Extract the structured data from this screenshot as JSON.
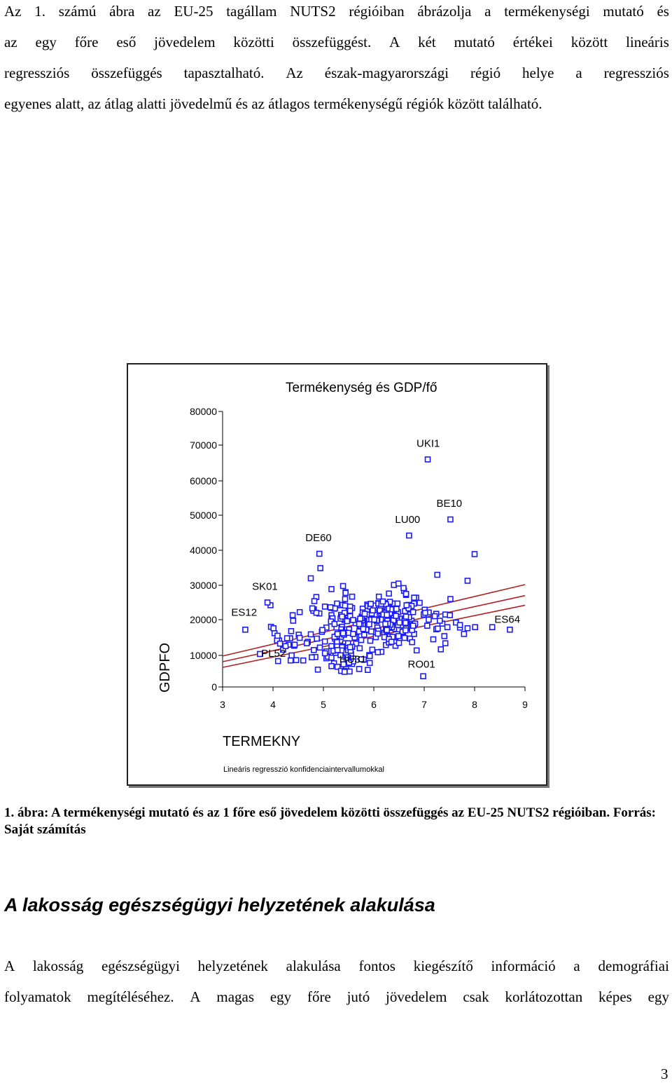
{
  "intro_lines": [
    "Az 1. számú ábra az EU-25 tagállam NUTS2 régióiban ábrázolja a termékenységi mutató és",
    "az egy főre eső jövedelem közötti összefüggést. A két mutató értékei között lineáris",
    "regressziós összefüggés tapasztalható. Az észak-magyarországi régió helye a regressziós",
    "egyenes alatt, az átlag alatti jövedelmű és az átlagos termékenységű régiók között található."
  ],
  "chart_data": {
    "type": "scatter",
    "title": "Termékenység és GDP/fő",
    "xlabel": "TERMEKNY",
    "ylabel": "GDPFO",
    "note": "Lineáris regresszió konfidenciaintervallumokkal",
    "xlim": [
      3,
      9
    ],
    "ylim": [
      0,
      80000
    ],
    "x_ticks": [
      3,
      4,
      5,
      6,
      7,
      8,
      9
    ],
    "y_ticks": [
      0,
      10000,
      20000,
      30000,
      40000,
      50000,
      60000,
      70000,
      80000
    ],
    "point_color": "#1a1aff",
    "line_color": "#b22222",
    "regression": {
      "fit": [
        [
          3.0,
          8000
        ],
        [
          9.0,
          27000
        ]
      ],
      "upper": [
        [
          3.0,
          9800
        ],
        [
          9.0,
          30200
        ]
      ],
      "lower": [
        [
          3.0,
          6200
        ],
        [
          9.0,
          24200
        ]
      ]
    },
    "labeled_points": [
      {
        "label": "UKI1",
        "x": 7.07,
        "y": 66000
      },
      {
        "label": "BE10",
        "x": 7.52,
        "y": 48800
      },
      {
        "label": "LU00",
        "x": 6.7,
        "y": 44200
      },
      {
        "label": "DE60",
        "x": 4.92,
        "y": 39000
      },
      {
        "label": "SK01",
        "x": 3.89,
        "y": 25000
      },
      {
        "label": "ES12",
        "x": 3.45,
        "y": 17200
      },
      {
        "label": "ES64",
        "x": 8.7,
        "y": 17200
      },
      {
        "label": "PL52",
        "x": 4.1,
        "y": 8200
      },
      {
        "label": "HU31",
        "x": 5.4,
        "y": 7200
      },
      {
        "label": "RO01",
        "x": 6.98,
        "y": 3400
      }
    ],
    "points": [
      [
        5.55,
        10400
      ],
      [
        6.27,
        22800
      ],
      [
        3.74,
        10400
      ],
      [
        5.37,
        18000
      ],
      [
        6.85,
        11400
      ],
      [
        6.44,
        22700
      ],
      [
        5.49,
        11400
      ],
      [
        4.51,
        15800
      ],
      [
        6.84,
        26400
      ],
      [
        4.37,
        10000
      ],
      [
        4.53,
        14900
      ],
      [
        4.36,
        16800
      ],
      [
        4.35,
        8400
      ],
      [
        5.16,
        21300
      ],
      [
        5.65,
        13300
      ],
      [
        6.04,
        15100
      ],
      [
        5.34,
        24200
      ],
      [
        5.21,
        7500
      ],
      [
        5.59,
        9000
      ],
      [
        5.93,
        14100
      ],
      [
        6.24,
        12900
      ],
      [
        4.69,
        13800
      ],
      [
        5.72,
        17600
      ],
      [
        5.48,
        20800
      ],
      [
        4.2,
        11600
      ],
      [
        4.42,
        12700
      ],
      [
        6.46,
        18200
      ],
      [
        6.17,
        20300
      ],
      [
        5.16,
        28900
      ],
      [
        5.03,
        23800
      ],
      [
        6.4,
        24700
      ],
      [
        5.57,
        23400
      ],
      [
        6.14,
        20000
      ],
      [
        6.91,
        24900
      ],
      [
        6.58,
        16300
      ],
      [
        3.96,
        18000
      ],
      [
        5.35,
        10600
      ],
      [
        5.35,
        17300
      ],
      [
        5.88,
        5400
      ],
      [
        6.29,
        19700
      ],
      [
        5.76,
        20900
      ],
      [
        4.75,
        15900
      ],
      [
        5.18,
        20300
      ],
      [
        6.43,
        15100
      ],
      [
        7.06,
        18300
      ],
      [
        6.56,
        20300
      ],
      [
        5.79,
        18800
      ],
      [
        5.45,
        5700
      ],
      [
        6.64,
        19200
      ],
      [
        4.4,
        19700
      ],
      [
        6.27,
        23300
      ],
      [
        6.21,
        16300
      ],
      [
        5.65,
        15200
      ],
      [
        6.72,
        14700
      ],
      [
        4.46,
        8500
      ],
      [
        6.26,
        19200
      ],
      [
        6.61,
        20000
      ],
      [
        6.63,
        20300
      ],
      [
        5.49,
        9300
      ],
      [
        5.94,
        21200
      ],
      [
        5.18,
        20400
      ],
      [
        6.07,
        20400
      ],
      [
        5.26,
        13100
      ],
      [
        6.4,
        20200
      ],
      [
        4.81,
        23000
      ],
      [
        5.72,
        12000
      ],
      [
        5.51,
        17300
      ],
      [
        6.06,
        19600
      ],
      [
        6.28,
        24800
      ],
      [
        5.24,
        10700
      ],
      [
        5.78,
        23200
      ],
      [
        5.43,
        13400
      ],
      [
        4.6,
        8400
      ],
      [
        5.33,
        15300
      ],
      [
        4.84,
        9500
      ],
      [
        6.36,
        17700
      ],
      [
        5.16,
        12600
      ],
      [
        6.32,
        25200
      ],
      [
        6.38,
        20300
      ],
      [
        6.62,
        22500
      ],
      [
        4.12,
        14200
      ],
      [
        5.06,
        9100
      ],
      [
        6.32,
        15300
      ],
      [
        6.4,
        20000
      ],
      [
        6.43,
        17400
      ],
      [
        5.28,
        6400
      ],
      [
        6.34,
        18300
      ],
      [
        5.22,
        23200
      ],
      [
        5.15,
        19500
      ],
      [
        6.21,
        15100
      ],
      [
        5.49,
        8700
      ],
      [
        6.76,
        13700
      ],
      [
        4.08,
        14200
      ],
      [
        5.53,
        7600
      ],
      [
        6.36,
        17900
      ],
      [
        5.16,
        6600
      ],
      [
        4.39,
        21300
      ],
      [
        6.56,
        17000
      ],
      [
        5.86,
        17100
      ],
      [
        5.81,
        15800
      ],
      [
        6.8,
        24700
      ],
      [
        6.61,
        19700
      ],
      [
        6.26,
        16800
      ],
      [
        6.75,
        19700
      ],
      [
        6.5,
        17300
      ],
      [
        5.87,
        24400
      ],
      [
        5.95,
        16700
      ],
      [
        5.43,
        21900
      ],
      [
        5.38,
        24300
      ],
      [
        6.24,
        17200
      ],
      [
        4.43,
        13000
      ],
      [
        4.31,
        13000
      ],
      [
        6.8,
        16000
      ],
      [
        4.81,
        11500
      ],
      [
        5.06,
        11100
      ],
      [
        7.36,
        18900
      ],
      [
        6.19,
        24500
      ],
      [
        5.95,
        20000
      ],
      [
        5.96,
        23600
      ],
      [
        6.76,
        18800
      ],
      [
        6.6,
        28400
      ],
      [
        6.02,
        20000
      ],
      [
        6.54,
        18400
      ],
      [
        5.75,
        14300
      ],
      [
        6.48,
        22200
      ],
      [
        4.34,
        14800
      ],
      [
        6.64,
        27200
      ],
      [
        7.01,
        22900
      ],
      [
        5.43,
        16400
      ],
      [
        6.47,
        24700
      ],
      [
        7.4,
        15400
      ],
      [
        6.01,
        22100
      ],
      [
        5.69,
        19500
      ],
      [
        5.34,
        10100
      ],
      [
        5.43,
        5000
      ],
      [
        5.52,
        4900
      ],
      [
        6.15,
        11000
      ],
      [
        5.88,
        24000
      ],
      [
        7.09,
        22100
      ],
      [
        5.23,
        14700
      ],
      [
        5.81,
        19700
      ],
      [
        4.8,
        22600
      ],
      [
        6.99,
        21500
      ],
      [
        6.3,
        18000
      ],
      [
        5.42,
        19900
      ],
      [
        6.4,
        21300
      ],
      [
        5.41,
        5100
      ],
      [
        5.35,
        5100
      ],
      [
        5.49,
        13400
      ],
      [
        5.09,
        9600
      ],
      [
        5.92,
        7600
      ],
      [
        5.64,
        19000
      ],
      [
        5.91,
        21500
      ],
      [
        6.05,
        21100
      ],
      [
        5.57,
        12400
      ],
      [
        5.39,
        29800
      ],
      [
        5.57,
        26700
      ],
      [
        6.02,
        21400
      ],
      [
        5.39,
        12500
      ],
      [
        5.96,
        21800
      ],
      [
        5.35,
        21400
      ],
      [
        5.39,
        20300
      ],
      [
        5.77,
        17900
      ],
      [
        5.41,
        16200
      ],
      [
        5.5,
        22500
      ],
      [
        6.14,
        24000
      ],
      [
        6.15,
        22400
      ],
      [
        5.83,
        17100
      ],
      [
        5.93,
        23800
      ],
      [
        7.09,
        20000
      ],
      [
        7.31,
        19700
      ],
      [
        5.47,
        19600
      ],
      [
        6.26,
        17100
      ],
      [
        5.42,
        4800
      ],
      [
        5.53,
        21000
      ],
      [
        5.91,
        18700
      ],
      [
        6.69,
        24300
      ],
      [
        5.06,
        17800
      ],
      [
        5.34,
        20300
      ],
      [
        5.43,
        24100
      ],
      [
        6.64,
        17500
      ],
      [
        4.86,
        26600
      ],
      [
        5.2,
        11300
      ],
      [
        5.16,
        23400
      ],
      [
        6.27,
        19700
      ],
      [
        5.5,
        16300
      ],
      [
        5.35,
        15200
      ],
      [
        6.48,
        18500
      ],
      [
        6.28,
        21600
      ],
      [
        6.37,
        15200
      ],
      [
        6.01,
        24100
      ],
      [
        5.42,
        22000
      ],
      [
        5.91,
        10100
      ],
      [
        5.57,
        7300
      ],
      [
        5.79,
        19800
      ],
      [
        6.4,
        30100
      ],
      [
        7.63,
        19200
      ],
      [
        6.09,
        24800
      ],
      [
        5.8,
        8700
      ],
      [
        5.59,
        8100
      ],
      [
        5.71,
        5700
      ],
      [
        4.94,
        34900
      ],
      [
        7.02,
        22000
      ],
      [
        5.23,
        23300
      ],
      [
        4.77,
        9400
      ],
      [
        6.05,
        20100
      ],
      [
        3.95,
        24200
      ],
      [
        4.01,
        17600
      ],
      [
        6.73,
        23000
      ],
      [
        5.27,
        15500
      ],
      [
        7.24,
        17300
      ],
      [
        5.37,
        12300
      ],
      [
        7.46,
        17900
      ],
      [
        6.07,
        17800
      ],
      [
        4.89,
        5500
      ],
      [
        7.27,
        17500
      ],
      [
        4.93,
        12200
      ],
      [
        5.85,
        17200
      ],
      [
        4.28,
        14800
      ],
      [
        6.3,
        27600
      ],
      [
        5.16,
        9300
      ],
      [
        5.37,
        20900
      ],
      [
        5.47,
        9400
      ],
      [
        6.32,
        21900
      ],
      [
        4.82,
        25400
      ],
      [
        6.79,
        18500
      ],
      [
        6.57,
        16600
      ],
      [
        4.67,
        13400
      ],
      [
        6.12,
        22700
      ],
      [
        5.36,
        11400
      ],
      [
        6.06,
        19800
      ],
      [
        6.23,
        22000
      ],
      [
        6.01,
        20000
      ],
      [
        4.92,
        21800
      ],
      [
        7.71,
        17800
      ],
      [
        6.24,
        24500
      ],
      [
        5.78,
        19600
      ],
      [
        5.62,
        15000
      ],
      [
        6.3,
        13600
      ],
      [
        5.46,
        8600
      ],
      [
        5.59,
        16000
      ],
      [
        5.22,
        15200
      ],
      [
        5.97,
        11600
      ],
      [
        6.09,
        16900
      ],
      [
        5.76,
        20400
      ],
      [
        6.09,
        24700
      ],
      [
        5.94,
        24600
      ],
      [
        5.51,
        7700
      ],
      [
        7.24,
        21700
      ],
      [
        5.44,
        28000
      ],
      [
        5.43,
        26000
      ],
      [
        6.43,
        12700
      ],
      [
        6.39,
        19800
      ],
      [
        6.5,
        13500
      ],
      [
        5.92,
        9800
      ],
      [
        5.73,
        20300
      ],
      [
        6.75,
        24000
      ],
      [
        6.8,
        26400
      ],
      [
        5.59,
        19900
      ],
      [
        6.33,
        18600
      ],
      [
        7.33,
        11700
      ],
      [
        4.75,
        32000
      ],
      [
        6.64,
        27500
      ],
      [
        5.53,
        23800
      ],
      [
        6.82,
        18900
      ],
      [
        6.3,
        23200
      ],
      [
        5.78,
        18500
      ],
      [
        6.15,
        24600
      ],
      [
        7.42,
        21500
      ],
      [
        5.26,
        17800
      ],
      [
        6.37,
        23000
      ],
      [
        5.71,
        16700
      ],
      [
        6.28,
        18900
      ],
      [
        5.27,
        13700
      ],
      [
        6.63,
        17000
      ],
      [
        4.03,
        16200
      ],
      [
        5.78,
        22100
      ],
      [
        5.37,
        16400
      ],
      [
        4.53,
        22200
      ],
      [
        6.49,
        15400
      ],
      [
        5.14,
        23600
      ],
      [
        5.27,
        24700
      ],
      [
        5.74,
        18300
      ],
      [
        4.09,
        15500
      ],
      [
        5.53,
        22600
      ],
      [
        4.25,
        12600
      ],
      [
        6.69,
        23300
      ],
      [
        4.87,
        14700
      ],
      [
        5.28,
        16000
      ],
      [
        5.75,
        8800
      ],
      [
        4.97,
        16600
      ],
      [
        6.44,
        23200
      ],
      [
        5.22,
        18800
      ],
      [
        6.19,
        21500
      ],
      [
        6.63,
        19100
      ],
      [
        6.3,
        14600
      ],
      [
        7.26,
        33000
      ],
      [
        7.42,
        13400
      ],
      [
        7.18,
        14500
      ],
      [
        5.27,
        12500
      ],
      [
        6.35,
        13800
      ],
      [
        6.78,
        22200
      ],
      [
        6.61,
        14900
      ],
      [
        5.54,
        11300
      ],
      [
        5.28,
        11500
      ],
      [
        6.76,
        17100
      ],
      [
        5.82,
        21700
      ],
      [
        4.86,
        22000
      ],
      [
        6.18,
        25300
      ],
      [
        5.53,
        12300
      ],
      [
        6.26,
        21400
      ],
      [
        6.51,
        19200
      ],
      [
        6.23,
        18800
      ],
      [
        6.7,
        20700
      ],
      [
        5.03,
        13900
      ],
      [
        5.71,
        18800
      ],
      [
        5.79,
        17400
      ],
      [
        7.71,
        18500
      ],
      [
        6.78,
        18300
      ],
      [
        4.98,
        17100
      ],
      [
        6.49,
        30500
      ],
      [
        6.1,
        26700
      ],
      [
        6.65,
        24200
      ],
      [
        6.64,
        20900
      ],
      [
        5.03,
        10600
      ],
      [
        5.98,
        22700
      ],
      [
        6.44,
        21100
      ],
      [
        6.08,
        16100
      ],
      [
        5.44,
        27800
      ],
      [
        6.59,
        29200
      ],
      [
        6.08,
        10900
      ],
      [
        7.52,
        26000
      ],
      [
        4.78,
        23300
      ],
      [
        7.51,
        21300
      ],
      [
        4.14,
        13300
      ],
      [
        5.41,
        15800
      ],
      [
        7.21,
        21000
      ],
      [
        5.39,
        16200
      ],
      [
        6.45,
        23100
      ],
      [
        8.0,
        38900
      ],
      [
        7.86,
        31300
      ],
      [
        8.35,
        17900
      ],
      [
        8.01,
        17900
      ],
      [
        7.86,
        17600
      ],
      [
        7.79,
        16000
      ]
    ]
  },
  "caption": "1. ábra: A termékenységi mutató és az 1 főre eső jövedelem közötti összefüggés az EU-25 NUTS2 régióiban. Forrás: Saját számítás",
  "section_heading": "A lakosság egészségügyi helyzetének alakulása",
  "body_lines": [
    "A lakosság egészségügyi helyzetének alakulása fontos kiegészítő információ a demográfiai",
    "folyamatok megítéléséhez. A magas egy főre jutó jövedelem csak korlátozottan képes egy"
  ],
  "page_number": "3"
}
